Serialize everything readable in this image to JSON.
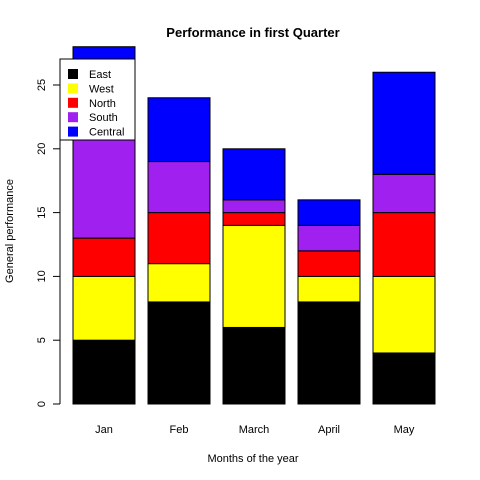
{
  "chart_data": {
    "type": "bar",
    "stacked": true,
    "title": "Performance in first Quarter",
    "xlabel": "Months of the year",
    "ylabel": "General performance",
    "categories": [
      "Jan",
      "Feb",
      "March",
      "April",
      "May"
    ],
    "series": [
      {
        "name": "East",
        "color": "#000000",
        "values": [
          5,
          8,
          6,
          8,
          4
        ]
      },
      {
        "name": "West",
        "color": "#ffff00",
        "values": [
          5,
          3,
          8,
          2,
          6
        ]
      },
      {
        "name": "North",
        "color": "#ff0000",
        "values": [
          3,
          4,
          1,
          2,
          5
        ]
      },
      {
        "name": "South",
        "color": "#a020f0",
        "values": [
          9,
          4,
          1,
          2,
          3
        ]
      },
      {
        "name": "Central",
        "color": "#0000ff",
        "values": [
          6,
          5,
          4,
          2,
          8
        ]
      }
    ],
    "ylim": [
      0,
      27
    ],
    "yticks": [
      0,
      5,
      10,
      15,
      20,
      25
    ],
    "grid": false,
    "legend_position": "top-left"
  }
}
